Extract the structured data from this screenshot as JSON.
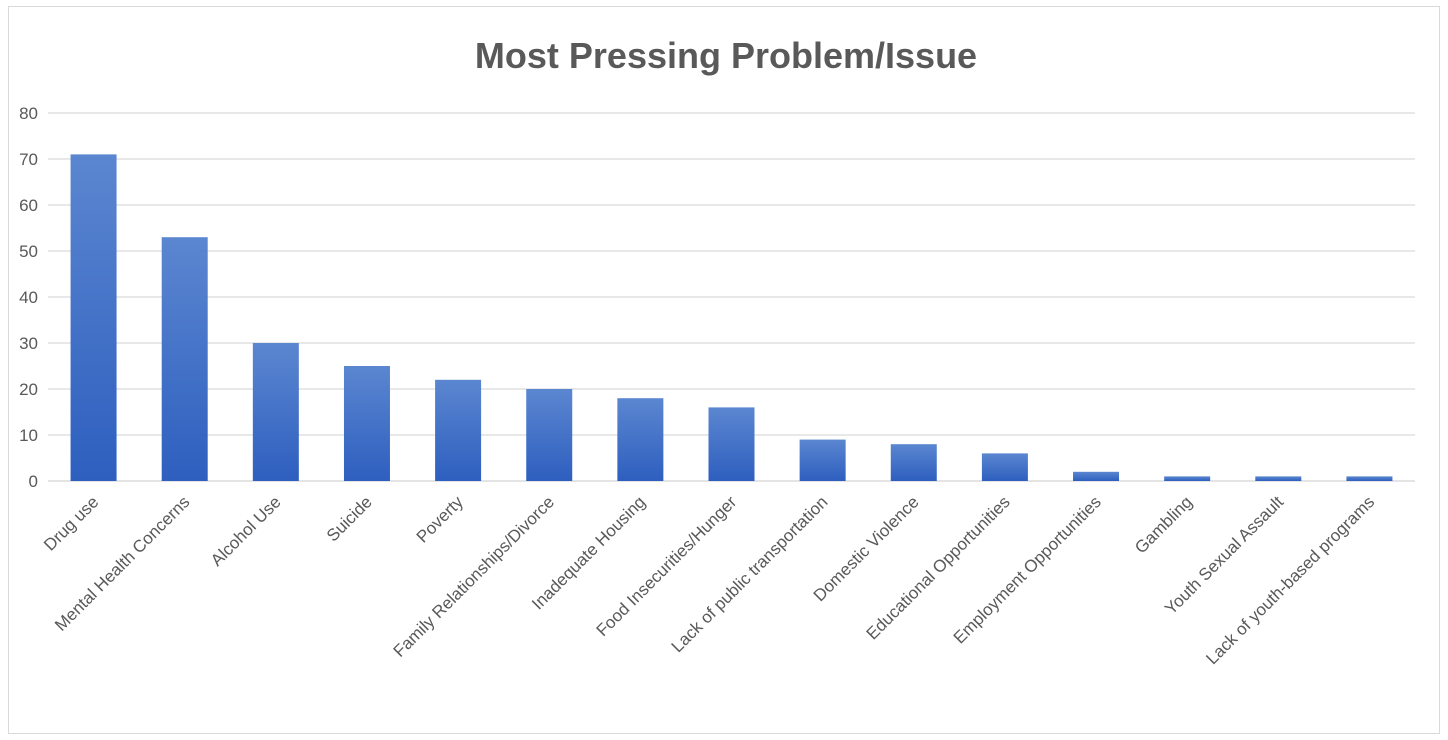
{
  "chart_data": {
    "type": "bar",
    "title": "Most Pressing Problem/Issue",
    "xlabel": "",
    "ylabel": "",
    "ylim": [
      0,
      80
    ],
    "yticks": [
      0,
      10,
      20,
      30,
      40,
      50,
      60,
      70,
      80
    ],
    "grid": true,
    "legend": "none",
    "bar_color_top": "#5b86d0",
    "bar_color_bottom": "#2e5fbf",
    "categories": [
      "Drug use",
      "Mental Health Concerns",
      "Alcohol Use",
      "Suicide",
      "Poverty",
      "Family Relationships/Divorce",
      "Inadequate Housing",
      "Food Insecurities/Hunger",
      "Lack of public transportation",
      "Domestic Violence",
      "Educational Opportunities",
      "Employment Opportunities",
      "Gambling",
      "Youth Sexual Assault",
      "Lack of youth-based programs"
    ],
    "values": [
      71,
      53,
      30,
      25,
      22,
      20,
      18,
      16,
      9,
      8,
      6,
      2,
      1,
      1,
      1
    ]
  }
}
